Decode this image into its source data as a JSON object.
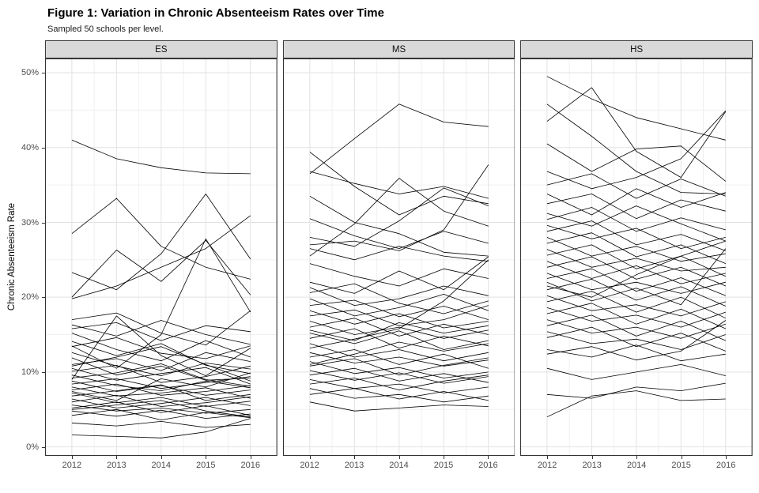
{
  "chart_data": {
    "type": "line",
    "title": "Figure 1: Variation in Chronic Absenteeism Rates over Time",
    "subtitle": "Sampled 50 schools per level.",
    "ylabel": "Chronic Absenteeism Rate",
    "xlabel": "",
    "x": [
      2012,
      2013,
      2014,
      2015,
      2016
    ],
    "xlim": [
      2011.4,
      2016.6
    ],
    "ylim": [
      -1.2,
      51.9
    ],
    "yticks": [
      0,
      10,
      20,
      30,
      40,
      50
    ],
    "yminor": [
      5,
      15,
      25,
      35,
      45
    ],
    "xminor": [
      2012.5,
      2013.5,
      2014.5,
      2015.5
    ],
    "ytick_suffix": "%",
    "grid": "on",
    "legend": "none",
    "line_color": "#000000",
    "facets": [
      {
        "label": "ES",
        "series": [
          [
            41.0,
            38.5,
            37.3,
            36.6,
            36.5
          ],
          [
            28.5,
            33.2,
            26.8,
            24.0,
            22.4
          ],
          [
            23.3,
            21.0,
            25.8,
            33.8,
            25.1
          ],
          [
            19.8,
            21.5,
            24.0,
            26.5,
            30.9
          ],
          [
            20.0,
            26.3,
            22.1,
            27.6,
            20.3
          ],
          [
            17.0,
            17.9,
            15.2,
            13.6,
            18.2
          ],
          [
            16.3,
            14.8,
            16.9,
            15.0,
            13.7
          ],
          [
            15.2,
            13.0,
            11.5,
            14.2,
            12.0
          ],
          [
            14.1,
            12.2,
            13.8,
            10.9,
            9.8
          ],
          [
            13.4,
            14.6,
            12.5,
            11.8,
            13.5
          ],
          [
            12.6,
            10.8,
            9.5,
            11.2,
            10.4
          ],
          [
            11.9,
            9.6,
            10.8,
            8.9,
            9.2
          ],
          [
            11.0,
            11.8,
            10.2,
            12.6,
            11.4
          ],
          [
            10.5,
            8.9,
            9.8,
            10.6,
            8.4
          ],
          [
            10.1,
            10.9,
            8.6,
            9.4,
            10.8
          ],
          [
            9.6,
            8.2,
            7.5,
            8.8,
            7.9
          ],
          [
            9.2,
            9.9,
            11.1,
            9.0,
            8.1
          ],
          [
            8.8,
            7.4,
            8.2,
            6.9,
            7.6
          ],
          [
            8.4,
            9.1,
            7.8,
            8.6,
            9.4
          ],
          [
            8.0,
            6.8,
            7.2,
            7.9,
            6.5
          ],
          [
            7.6,
            8.4,
            6.9,
            7.4,
            8.2
          ],
          [
            7.2,
            5.9,
            6.6,
            5.4,
            6.1
          ],
          [
            6.8,
            7.5,
            8.3,
            6.2,
            7.0
          ],
          [
            6.4,
            5.2,
            5.8,
            6.6,
            5.5
          ],
          [
            6.0,
            6.9,
            5.4,
            5.9,
            6.7
          ],
          [
            5.6,
            4.8,
            5.2,
            4.5,
            5.0
          ],
          [
            5.2,
            6.0,
            4.6,
            5.5,
            4.2
          ],
          [
            4.8,
            4.1,
            4.9,
            3.8,
            4.4
          ],
          [
            4.2,
            5.0,
            3.6,
            4.6,
            3.9
          ],
          [
            3.2,
            2.8,
            3.4,
            2.6,
            3.0
          ],
          [
            1.6,
            1.4,
            1.2,
            2.0,
            3.8
          ],
          [
            13.5,
            10.5,
            15.0,
            27.8,
            18.0
          ],
          [
            9.0,
            17.5,
            12.2,
            9.5,
            13.2
          ],
          [
            15.8,
            16.6,
            14.2,
            16.2,
            15.4
          ],
          [
            7.4,
            6.2,
            9.1,
            8.0,
            9.9
          ],
          [
            10.8,
            12.0,
            13.4,
            11.0,
            8.8
          ],
          [
            5.0,
            5.6,
            6.2,
            4.8,
            4.0
          ]
        ]
      },
      {
        "label": "MS",
        "series": [
          [
            39.4,
            34.8,
            31.0,
            33.5,
            32.5
          ],
          [
            36.5,
            41.2,
            45.8,
            43.4,
            42.8
          ],
          [
            36.8,
            35.2,
            33.8,
            34.8,
            33.2
          ],
          [
            28.0,
            26.8,
            30.2,
            34.6,
            32.2
          ],
          [
            27.0,
            27.5,
            26.2,
            29.0,
            37.7
          ],
          [
            26.5,
            25.0,
            26.8,
            25.5,
            24.8
          ],
          [
            33.5,
            30.0,
            28.5,
            26.0,
            25.5
          ],
          [
            30.5,
            28.2,
            26.5,
            28.8,
            27.2
          ],
          [
            22.0,
            20.5,
            23.5,
            21.0,
            25.4
          ],
          [
            21.3,
            18.9,
            19.8,
            21.5,
            20.2
          ],
          [
            20.6,
            21.8,
            19.2,
            17.8,
            19.5
          ],
          [
            19.8,
            17.5,
            18.6,
            20.4,
            18.2
          ],
          [
            18.9,
            19.6,
            17.4,
            18.8,
            17.0
          ],
          [
            18.2,
            16.4,
            17.8,
            15.9,
            16.8
          ],
          [
            17.5,
            18.3,
            16.2,
            17.0,
            18.9
          ],
          [
            16.8,
            15.0,
            16.0,
            14.5,
            15.6
          ],
          [
            16.0,
            17.2,
            14.8,
            16.4,
            15.0
          ],
          [
            15.2,
            13.8,
            15.5,
            13.0,
            14.2
          ],
          [
            14.5,
            15.8,
            13.2,
            14.8,
            13.5
          ],
          [
            13.8,
            12.0,
            13.0,
            11.5,
            12.6
          ],
          [
            13.2,
            14.4,
            15.8,
            19.5,
            25.0
          ],
          [
            12.6,
            11.2,
            12.0,
            10.8,
            11.6
          ],
          [
            12.0,
            13.0,
            11.0,
            12.4,
            10.5
          ],
          [
            11.4,
            9.8,
            10.6,
            9.2,
            10.0
          ],
          [
            10.8,
            11.8,
            9.6,
            10.9,
            11.9
          ],
          [
            10.2,
            8.9,
            9.9,
            8.5,
            9.4
          ],
          [
            9.6,
            10.5,
            8.8,
            9.8,
            8.6
          ],
          [
            9.0,
            7.8,
            8.4,
            7.2,
            8.0
          ],
          [
            8.4,
            9.2,
            7.6,
            8.8,
            9.6
          ],
          [
            7.8,
            6.5,
            7.0,
            6.0,
            6.8
          ],
          [
            7.0,
            7.8,
            6.4,
            7.4,
            6.2
          ],
          [
            6.0,
            4.8,
            5.2,
            5.6,
            5.4
          ],
          [
            24.5,
            22.8,
            21.5,
            23.8,
            22.5
          ],
          [
            15.6,
            14.2,
            16.6,
            15.2,
            16.2
          ],
          [
            11.0,
            12.4,
            14.0,
            12.8,
            13.8
          ],
          [
            25.5,
            29.8,
            35.9,
            31.5,
            29.5
          ]
        ]
      },
      {
        "label": "HS",
        "series": [
          [
            49.5,
            46.5,
            44.0,
            42.5,
            41.0
          ],
          [
            43.5,
            48.0,
            39.5,
            36.0,
            44.8
          ],
          [
            45.8,
            41.5,
            36.8,
            34.0,
            33.8
          ],
          [
            40.5,
            36.8,
            39.8,
            40.2,
            35.5
          ],
          [
            36.8,
            34.5,
            36.0,
            38.5,
            44.9
          ],
          [
            35.0,
            36.5,
            33.2,
            35.8,
            33.5
          ],
          [
            33.8,
            31.0,
            34.5,
            32.0,
            34.0
          ],
          [
            32.5,
            33.8,
            30.5,
            33.0,
            31.5
          ],
          [
            31.2,
            29.5,
            32.2,
            29.8,
            27.5
          ],
          [
            30.4,
            32.0,
            28.8,
            30.6,
            29.0
          ],
          [
            29.6,
            27.8,
            29.2,
            26.5,
            28.0
          ],
          [
            28.8,
            30.2,
            27.0,
            28.4,
            26.2
          ],
          [
            28.0,
            25.5,
            26.8,
            24.8,
            25.8
          ],
          [
            27.2,
            28.6,
            25.4,
            27.0,
            24.5
          ],
          [
            26.4,
            24.0,
            25.2,
            23.5,
            24.0
          ],
          [
            25.6,
            27.0,
            23.8,
            25.5,
            22.8
          ],
          [
            24.8,
            22.5,
            24.2,
            21.8,
            23.2
          ],
          [
            24.0,
            25.4,
            22.4,
            24.0,
            21.5
          ],
          [
            23.2,
            21.0,
            22.0,
            20.5,
            22.0
          ],
          [
            22.5,
            23.8,
            20.8,
            22.6,
            20.2
          ],
          [
            22.0,
            19.5,
            21.2,
            19.0,
            26.5
          ],
          [
            21.0,
            22.4,
            19.6,
            21.4,
            18.8
          ],
          [
            20.2,
            18.2,
            19.0,
            17.5,
            19.4
          ],
          [
            19.4,
            20.8,
            18.0,
            20.0,
            17.2
          ],
          [
            18.6,
            16.8,
            17.6,
            16.0,
            18.0
          ],
          [
            17.8,
            19.2,
            16.4,
            18.4,
            15.8
          ],
          [
            17.0,
            15.2,
            16.0,
            14.5,
            16.4
          ],
          [
            16.2,
            17.6,
            14.8,
            16.8,
            14.2
          ],
          [
            15.4,
            13.8,
            14.4,
            13.0,
            15.0
          ],
          [
            14.6,
            16.0,
            13.4,
            15.2,
            12.8
          ],
          [
            13.0,
            12.0,
            13.6,
            11.5,
            12.4
          ],
          [
            12.4,
            13.4,
            11.6,
            12.8,
            16.9
          ],
          [
            10.5,
            9.0,
            10.0,
            11.0,
            9.5
          ],
          [
            7.0,
            6.5,
            8.0,
            7.5,
            8.5
          ],
          [
            4.0,
            6.8,
            7.5,
            6.2,
            6.4
          ],
          [
            21.5,
            20.0,
            23.0,
            25.5,
            27.5
          ]
        ]
      }
    ]
  }
}
